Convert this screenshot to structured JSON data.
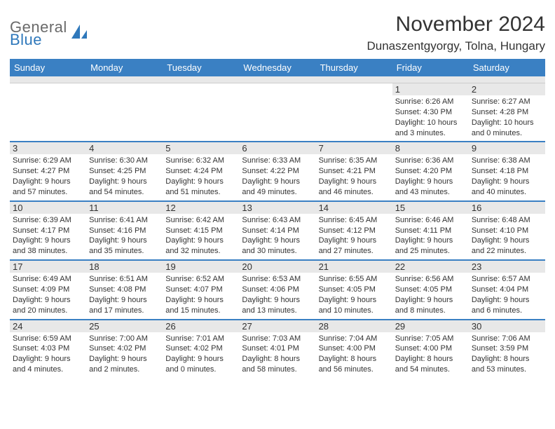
{
  "logo": {
    "word1": "General",
    "word2": "Blue",
    "shape_color": "#2f78bb"
  },
  "title": "November 2024",
  "location": "Dunaszentgyorgy, Tolna, Hungary",
  "header_bg": "#3a80c3",
  "daynum_bg": "#e8e8e8",
  "week_border": "#3a80c3",
  "day_names": [
    "Sunday",
    "Monday",
    "Tuesday",
    "Wednesday",
    "Thursday",
    "Friday",
    "Saturday"
  ],
  "weeks": [
    [
      null,
      null,
      null,
      null,
      null,
      {
        "n": "1",
        "sr": "6:26 AM",
        "ss": "4:30 PM",
        "dl": "10 hours and 3 minutes."
      },
      {
        "n": "2",
        "sr": "6:27 AM",
        "ss": "4:28 PM",
        "dl": "10 hours and 0 minutes."
      }
    ],
    [
      {
        "n": "3",
        "sr": "6:29 AM",
        "ss": "4:27 PM",
        "dl": "9 hours and 57 minutes."
      },
      {
        "n": "4",
        "sr": "6:30 AM",
        "ss": "4:25 PM",
        "dl": "9 hours and 54 minutes."
      },
      {
        "n": "5",
        "sr": "6:32 AM",
        "ss": "4:24 PM",
        "dl": "9 hours and 51 minutes."
      },
      {
        "n": "6",
        "sr": "6:33 AM",
        "ss": "4:22 PM",
        "dl": "9 hours and 49 minutes."
      },
      {
        "n": "7",
        "sr": "6:35 AM",
        "ss": "4:21 PM",
        "dl": "9 hours and 46 minutes."
      },
      {
        "n": "8",
        "sr": "6:36 AM",
        "ss": "4:20 PM",
        "dl": "9 hours and 43 minutes."
      },
      {
        "n": "9",
        "sr": "6:38 AM",
        "ss": "4:18 PM",
        "dl": "9 hours and 40 minutes."
      }
    ],
    [
      {
        "n": "10",
        "sr": "6:39 AM",
        "ss": "4:17 PM",
        "dl": "9 hours and 38 minutes."
      },
      {
        "n": "11",
        "sr": "6:41 AM",
        "ss": "4:16 PM",
        "dl": "9 hours and 35 minutes."
      },
      {
        "n": "12",
        "sr": "6:42 AM",
        "ss": "4:15 PM",
        "dl": "9 hours and 32 minutes."
      },
      {
        "n": "13",
        "sr": "6:43 AM",
        "ss": "4:14 PM",
        "dl": "9 hours and 30 minutes."
      },
      {
        "n": "14",
        "sr": "6:45 AM",
        "ss": "4:12 PM",
        "dl": "9 hours and 27 minutes."
      },
      {
        "n": "15",
        "sr": "6:46 AM",
        "ss": "4:11 PM",
        "dl": "9 hours and 25 minutes."
      },
      {
        "n": "16",
        "sr": "6:48 AM",
        "ss": "4:10 PM",
        "dl": "9 hours and 22 minutes."
      }
    ],
    [
      {
        "n": "17",
        "sr": "6:49 AM",
        "ss": "4:09 PM",
        "dl": "9 hours and 20 minutes."
      },
      {
        "n": "18",
        "sr": "6:51 AM",
        "ss": "4:08 PM",
        "dl": "9 hours and 17 minutes."
      },
      {
        "n": "19",
        "sr": "6:52 AM",
        "ss": "4:07 PM",
        "dl": "9 hours and 15 minutes."
      },
      {
        "n": "20",
        "sr": "6:53 AM",
        "ss": "4:06 PM",
        "dl": "9 hours and 13 minutes."
      },
      {
        "n": "21",
        "sr": "6:55 AM",
        "ss": "4:05 PM",
        "dl": "9 hours and 10 minutes."
      },
      {
        "n": "22",
        "sr": "6:56 AM",
        "ss": "4:05 PM",
        "dl": "9 hours and 8 minutes."
      },
      {
        "n": "23",
        "sr": "6:57 AM",
        "ss": "4:04 PM",
        "dl": "9 hours and 6 minutes."
      }
    ],
    [
      {
        "n": "24",
        "sr": "6:59 AM",
        "ss": "4:03 PM",
        "dl": "9 hours and 4 minutes."
      },
      {
        "n": "25",
        "sr": "7:00 AM",
        "ss": "4:02 PM",
        "dl": "9 hours and 2 minutes."
      },
      {
        "n": "26",
        "sr": "7:01 AM",
        "ss": "4:02 PM",
        "dl": "9 hours and 0 minutes."
      },
      {
        "n": "27",
        "sr": "7:03 AM",
        "ss": "4:01 PM",
        "dl": "8 hours and 58 minutes."
      },
      {
        "n": "28",
        "sr": "7:04 AM",
        "ss": "4:00 PM",
        "dl": "8 hours and 56 minutes."
      },
      {
        "n": "29",
        "sr": "7:05 AM",
        "ss": "4:00 PM",
        "dl": "8 hours and 54 minutes."
      },
      {
        "n": "30",
        "sr": "7:06 AM",
        "ss": "3:59 PM",
        "dl": "8 hours and 53 minutes."
      }
    ]
  ],
  "labels": {
    "sunrise": "Sunrise:",
    "sunset": "Sunset:",
    "daylight": "Daylight:"
  }
}
